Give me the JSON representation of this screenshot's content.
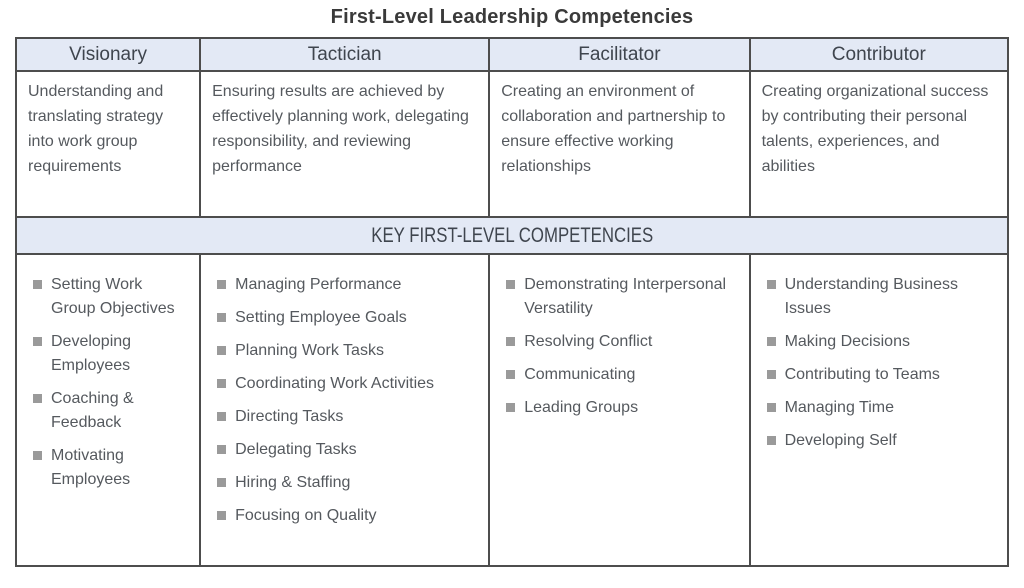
{
  "title": "First-Level Leadership Competencies",
  "banner_label": "KEY FIRST-LEVEL COMPETENCIES",
  "colors": {
    "header_bg": "#e3e9f5",
    "border": "#4d4d4d",
    "title_text": "#3a3a3a",
    "header_text": "#3f454e",
    "body_text": "#55595e",
    "bullet": "#9a9a9a"
  },
  "columns": [
    {
      "name": "Visionary",
      "description": "Understanding and translating strategy into work group requirements",
      "competencies": [
        "Setting Work Group Objectives",
        "Developing Employees",
        "Coaching & Feedback",
        "Motivating Employees"
      ]
    },
    {
      "name": "Tactician",
      "description": "Ensuring results are achieved by effectively planning work, delegating responsibility, and reviewing performance",
      "competencies": [
        "Managing Performance",
        "Setting Employee Goals",
        "Planning Work Tasks",
        "Coordinating Work Activities",
        "Directing Tasks",
        "Delegating Tasks",
        "Hiring & Staffing",
        "Focusing on Quality"
      ]
    },
    {
      "name": "Facilitator",
      "description": "Creating an environment of collaboration and partnership to ensure effective working relationships",
      "competencies": [
        "Demonstrating Interpersonal Versatility",
        "Resolving Conflict",
        "Communicating",
        "Leading Groups"
      ]
    },
    {
      "name": "Contributor",
      "description": "Creating organizational success by contributing their personal talents, experiences, and abilities",
      "competencies": [
        "Understanding Business Issues",
        "Making Decisions",
        "Contributing to Teams",
        "Managing Time",
        "Developing Self"
      ]
    }
  ]
}
